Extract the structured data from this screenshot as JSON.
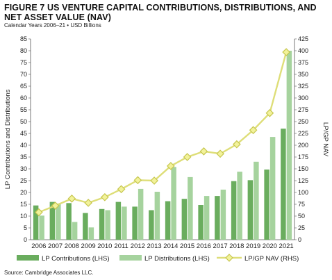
{
  "title": "FIGURE 7  US VENTURE CAPITAL CONTRIBUTIONS, DISTRIBUTIONS, AND NET ASSET VALUE (NAV)",
  "subtitle": "Calendar Years 2006–21 • USD Billions",
  "source": "Source: Cambridge Associates LLC.",
  "colors": {
    "contributions": "#6aad5e",
    "distributions": "#a6d39e",
    "nav_line": "#dede78",
    "nav_marker_fill": "#f2f29a",
    "nav_marker_stroke": "#c6c64e"
  },
  "chart_data": {
    "type": "bar",
    "categories": [
      "2006",
      "2007",
      "2008",
      "2009",
      "2010",
      "2011",
      "2012",
      "2013",
      "2014",
      "2015",
      "2016",
      "2017",
      "2018",
      "2019",
      "2020",
      "2021"
    ],
    "series": [
      {
        "name": "LP Contributions (LHS)",
        "kind": "bar",
        "axis": "left",
        "values": [
          14.5,
          16,
          15.5,
          11.3,
          13,
          16,
          14,
          12.5,
          16.3,
          17.3,
          14.7,
          18.5,
          24.8,
          25.2,
          29.7,
          47
        ]
      },
      {
        "name": "LP Distributions (LHS)",
        "kind": "bar",
        "axis": "left",
        "values": [
          10.2,
          15.3,
          7.5,
          5.2,
          12.5,
          14,
          21.5,
          20.3,
          30.8,
          26.5,
          18.5,
          21.2,
          28.8,
          33,
          43.5,
          80
        ]
      },
      {
        "name": "LP/GP NAV (RHS)",
        "kind": "line",
        "axis": "right",
        "values": [
          58,
          72,
          87,
          78,
          90,
          107,
          126,
          125,
          156,
          175,
          187,
          182,
          202,
          232,
          268,
          397
        ]
      }
    ],
    "ylabel": "LP Contributions and Distributions",
    "y2label": "LP/GP NAV",
    "ylim": [
      0,
      85
    ],
    "y2lim": [
      0,
      425
    ],
    "yticks": [
      "0",
      "5",
      "10",
      "15",
      "20",
      "25",
      "30",
      "35",
      "40",
      "45",
      "50",
      "55",
      "60",
      "65",
      "70",
      "75",
      "80",
      "85"
    ],
    "y2ticks": [
      "0",
      "25",
      "50",
      "75",
      "100",
      "125",
      "150",
      "175",
      "200",
      "225",
      "250",
      "275",
      "300",
      "325",
      "350",
      "375",
      "400",
      "425"
    ],
    "grid": false,
    "legend_position": "bottom"
  }
}
